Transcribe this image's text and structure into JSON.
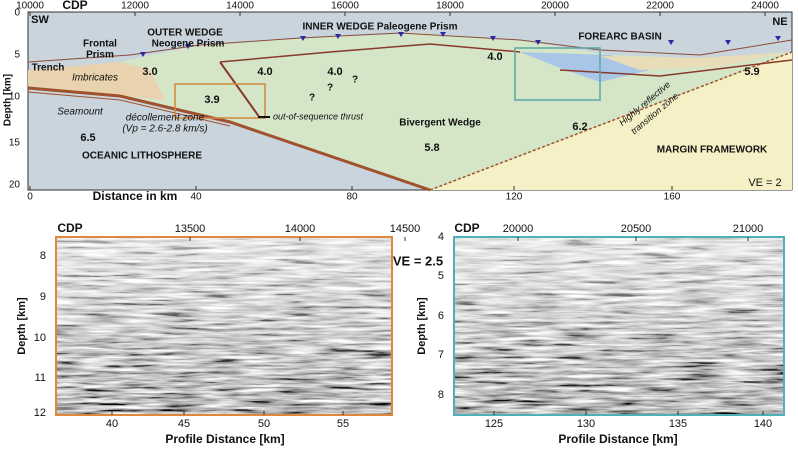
{
  "top": {
    "cdp_title": "CDP",
    "cdp_ticks": [
      "10000",
      "12000",
      "14000",
      "16000",
      "18000",
      "20000",
      "22000",
      "24000"
    ],
    "depth_title": "Depth [km]",
    "depth_ticks": [
      "0",
      "5",
      "10",
      "15",
      "20"
    ],
    "distance_title": "Distance in km",
    "distance_ticks": [
      "0",
      "40",
      "80",
      "120",
      "160"
    ],
    "labels": [
      "SW",
      "Trench",
      "Frontal",
      "Prism",
      "OUTER WEDGE",
      "Neogene Prism",
      "INNER WEDGE Paleogene Prism",
      "FOREARC BASIN",
      "NE",
      "Imbricates",
      "3.0",
      "4.0",
      "4.0",
      "?",
      "?",
      "?",
      "4.0",
      "5.9",
      "Seamount",
      "3.9",
      "décollement zone",
      "(Vp = 2.6-2.8 km/s)",
      "out-of-sequence thrust",
      "6.5",
      "Bivergent Wedge",
      "6.2",
      "Highly reflective",
      "transition zone",
      "5.8",
      "OCEANIC LITHOSPHERE",
      "MARGIN FRAMEWORK",
      "VE = 2"
    ]
  },
  "bottom_left": {
    "cdp_title": "CDP",
    "cdp_ticks": [
      "13500",
      "14000",
      "14500"
    ],
    "depth_title": "Depth [km]",
    "depth_ticks": [
      "8",
      "9",
      "10",
      "11",
      "12"
    ],
    "distance_title": "Profile Distance [km]",
    "distance_ticks": [
      "40",
      "45",
      "50",
      "55"
    ]
  },
  "bottom_right": {
    "cdp_title": "CDP",
    "cdp_ticks": [
      "20000",
      "20500",
      "21000"
    ],
    "depth_title": "Depth [km]",
    "depth_ticks": [
      "4",
      "5",
      "6",
      "7",
      "8"
    ],
    "distance_title": "Profile Distance [km]",
    "distance_ticks": [
      "125",
      "130",
      "135",
      "140"
    ],
    "ve": "VE = 2.5"
  }
}
